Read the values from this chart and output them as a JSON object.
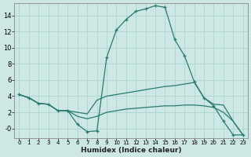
{
  "xlabel": "Humidex (Indice chaleur)",
  "xlim": [
    -0.5,
    23.5
  ],
  "ylim": [
    -1.2,
    15.5
  ],
  "background_color": "#cde8e4",
  "grid_color": "#b0d8d2",
  "line_color": "#2a7a6e",
  "x": [
    0,
    1,
    2,
    3,
    4,
    5,
    6,
    7,
    8,
    9,
    10,
    11,
    12,
    13,
    14,
    15,
    16,
    17,
    18,
    19,
    20,
    21,
    22,
    23
  ],
  "line1": [
    4.2,
    3.8,
    3.1,
    3.0,
    2.2,
    2.2,
    0.5,
    -0.4,
    -0.3,
    8.8,
    12.2,
    13.5,
    14.5,
    14.8,
    15.2,
    15.0,
    11.0,
    9.0,
    5.8,
    3.8,
    2.8,
    0.9,
    -0.8,
    -0.8
  ],
  "line2": [
    4.2,
    3.8,
    3.1,
    3.0,
    2.2,
    2.2,
    2.0,
    1.8,
    3.5,
    4.0,
    4.2,
    4.4,
    4.6,
    4.8,
    5.0,
    5.2,
    5.3,
    5.5,
    5.7,
    3.8,
    3.0,
    2.9,
    0.9,
    -0.8
  ],
  "line3": [
    4.2,
    3.8,
    3.1,
    3.0,
    2.2,
    2.2,
    1.5,
    1.2,
    1.5,
    2.0,
    2.2,
    2.4,
    2.5,
    2.6,
    2.7,
    2.8,
    2.8,
    2.9,
    2.9,
    2.8,
    2.6,
    2.0,
    0.9,
    -0.8
  ],
  "yticks": [
    0,
    2,
    4,
    6,
    8,
    10,
    12,
    14
  ],
  "ytick_labels": [
    "-0",
    "2",
    "4",
    "6",
    "8",
    "10",
    "12",
    "14"
  ],
  "xticks": [
    0,
    1,
    2,
    3,
    4,
    5,
    6,
    7,
    8,
    9,
    10,
    11,
    12,
    13,
    14,
    15,
    16,
    17,
    18,
    19,
    20,
    21,
    22,
    23
  ],
  "xtick_labels": [
    "0",
    "1",
    "2",
    "3",
    "4",
    "5",
    "6",
    "7",
    "8",
    "9",
    "10",
    "11",
    "12",
    "13",
    "14",
    "15",
    "16",
    "17",
    "18",
    "19",
    "20",
    "21",
    "22",
    "23"
  ]
}
